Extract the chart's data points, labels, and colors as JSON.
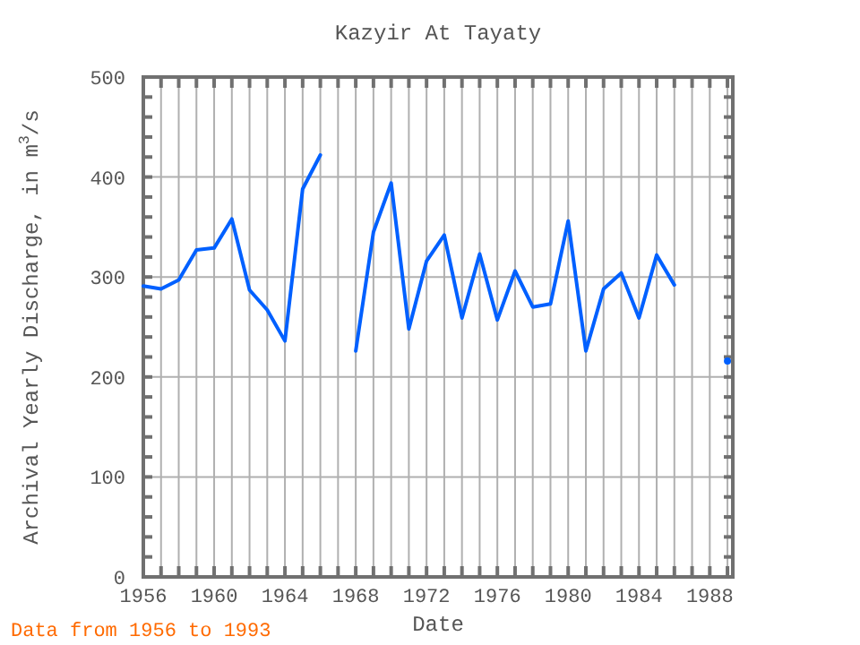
{
  "chart_data": {
    "type": "line",
    "title": "Kazyir At Tayaty",
    "xlabel": "Date",
    "ylabel": "Archival Yearly Discharge, in m$^{3}$/s",
    "annotations": [
      "Data from 1956 to 1993"
    ],
    "x": [
      1956,
      1957,
      1958,
      1959,
      1960,
      1961,
      1962,
      1963,
      1964,
      1965,
      1966,
      1967,
      1968,
      1969,
      1970,
      1971,
      1972,
      1973,
      1974,
      1975,
      1976,
      1977,
      1978,
      1979,
      1980,
      1981,
      1982,
      1983,
      1984,
      1985,
      1986,
      1987,
      1988,
      1989
    ],
    "series": [
      {
        "color": "#0060ff",
        "values": [
          291,
          288,
          297,
          327,
          329,
          358,
          287,
          267,
          236,
          388,
          422,
          null,
          226,
          345,
          394,
          248,
          316,
          342,
          259,
          323,
          257,
          306,
          270,
          273,
          356,
          226,
          288,
          304,
          259,
          322,
          292,
          null,
          null,
          216
        ]
      }
    ],
    "xlim": [
      1956,
      1989.3
    ],
    "ylim": [
      0,
      500
    ],
    "xticks": [
      1956,
      {
        "value": 1957,
        "label": null
      },
      {
        "value": 1958,
        "label": null
      },
      {
        "value": 1959,
        "label": null
      },
      1960,
      {
        "value": 1961,
        "label": null
      },
      {
        "value": 1962,
        "label": null
      },
      {
        "value": 1963,
        "label": null
      },
      1964,
      {
        "value": 1965,
        "label": null
      },
      {
        "value": 1966,
        "label": null
      },
      {
        "value": 1967,
        "label": null
      },
      1968,
      {
        "value": 1969,
        "label": null
      },
      {
        "value": 1970,
        "label": null
      },
      {
        "value": 1971,
        "label": null
      },
      1972,
      {
        "value": 1973,
        "label": null
      },
      {
        "value": 1974,
        "label": null
      },
      {
        "value": 1975,
        "label": null
      },
      1976,
      {
        "value": 1977,
        "label": null
      },
      {
        "value": 1978,
        "label": null
      },
      {
        "value": 1979,
        "label": null
      },
      1980,
      {
        "value": 1981,
        "label": null
      },
      {
        "value": 1982,
        "label": null
      },
      {
        "value": 1983,
        "label": null
      },
      1984,
      {
        "value": 1985,
        "label": null
      },
      {
        "value": 1986,
        "label": null
      },
      {
        "value": 1987,
        "label": null
      },
      1988,
      {
        "value": 1989,
        "label": null
      }
    ],
    "yticks": [
      0,
      {
        "value": 20,
        "label": null
      },
      {
        "value": 40,
        "label": null
      },
      {
        "value": 60,
        "label": null
      },
      {
        "value": 80,
        "label": null
      },
      100,
      {
        "value": 120,
        "label": null
      },
      {
        "value": 140,
        "label": null
      },
      {
        "value": 160,
        "label": null
      },
      {
        "value": 180,
        "label": null
      },
      200,
      {
        "value": 220,
        "label": null
      },
      {
        "value": 240,
        "label": null
      },
      {
        "value": 260,
        "label": null
      },
      {
        "value": 280,
        "label": null
      },
      300,
      {
        "value": 320,
        "label": null
      },
      {
        "value": 340,
        "label": null
      },
      {
        "value": 360,
        "label": null
      },
      {
        "value": 380,
        "label": null
      },
      400,
      {
        "value": 420,
        "label": null
      },
      {
        "value": 440,
        "label": null
      },
      {
        "value": 460,
        "label": null
      },
      {
        "value": 480,
        "label": null
      },
      500
    ],
    "grid": true,
    "marker": "none",
    "line_style": "solid"
  }
}
